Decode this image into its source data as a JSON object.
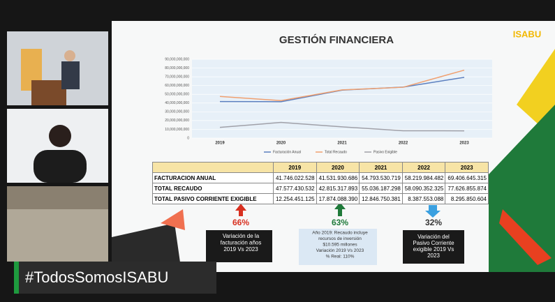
{
  "slide": {
    "title": "GESTIÓN FINANCIERA",
    "logo": "ISABU"
  },
  "chart_data": {
    "type": "line",
    "categories": [
      "2019",
      "2020",
      "2021",
      "2022",
      "2023"
    ],
    "series": [
      {
        "name": "Facturación Anual",
        "color": "#5b7fbf",
        "values": [
          41746022528,
          41531930686,
          54793530719,
          58219984482,
          69406645315
        ]
      },
      {
        "name": "Total Recaudo",
        "color": "#f0a070",
        "values": [
          47577430532,
          42815317893,
          55036187298,
          58090352325,
          77626855874
        ]
      },
      {
        "name": "Pasivo Exigible",
        "color": "#a0a0a8",
        "values": [
          12254451125,
          17874088390,
          12846750381,
          8387553088,
          8295850604
        ]
      }
    ],
    "ylim": [
      0,
      90000000000
    ],
    "yticks": [
      0,
      {
        "value": 10000000000,
        "label": "10,000,000,000"
      },
      {
        "value": 20000000000,
        "label": "20,000,000,000"
      },
      {
        "value": 30000000000,
        "label": "30,000,000,000"
      },
      {
        "value": 40000000000,
        "label": "40,000,000,000"
      },
      {
        "value": 50000000000,
        "label": "50,000,000,000"
      },
      {
        "value": 60000000000,
        "label": "60,000,000,000"
      },
      {
        "value": 70000000000,
        "label": "70,000,000,000"
      },
      {
        "value": 80000000000,
        "label": "80,000,000,000"
      },
      {
        "value": 90000000000,
        "label": "90,000,000,000"
      }
    ],
    "grid": true
  },
  "table": {
    "columns": [
      "2019",
      "2020",
      "2021",
      "2022",
      "2023"
    ],
    "rows": [
      {
        "label": "FACTURACION ANUAL",
        "cells": [
          "41.746.022.528",
          "41.531.930.686",
          "54.793.530.719",
          "58.219.984.482",
          "69.406.645.315"
        ]
      },
      {
        "label": "TOTAL RECAUDO",
        "cells": [
          "47.577.430.532",
          "42.815.317.893",
          "55.036.187.298",
          "58.090.352.325",
          "77.626.855.874"
        ]
      },
      {
        "label": "TOTAL PASIVO CORRIENTE EXIGIBLE",
        "cells": [
          "12.254.451.125",
          "17.874.088.390",
          "12.846.750.381",
          "8.387.553.088",
          "8.295.850.604"
        ]
      }
    ]
  },
  "notes": [
    {
      "percent": "66%",
      "lines": [
        "Variación de la",
        "facturación años",
        "2019 Vs 2023"
      ]
    },
    {
      "percent": "63%",
      "lines": [
        "Año 2019: Recaudo incluye",
        "recursos de inversión",
        "$10.595 millones",
        "Variación 2019 Vs 2023",
        "% Real: 110%"
      ]
    },
    {
      "percent": "32%",
      "lines": [
        "Variación del",
        "Pasivo Corriente",
        "exigible 2019 Vs",
        "2023"
      ]
    }
  ],
  "hashtag": "#TodosSomosISABU"
}
